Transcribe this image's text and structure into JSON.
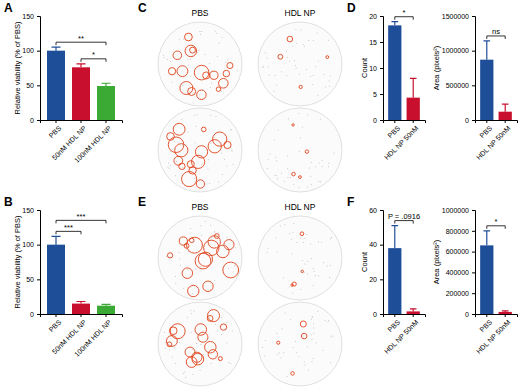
{
  "chart_data": [
    {
      "type": "bar",
      "panel_label": "A",
      "categories": [
        "PBS",
        "50nM HDL NP",
        "100nM HDL NP"
      ],
      "values": [
        100,
        76,
        49
      ],
      "errors": [
        5,
        5,
        4
      ],
      "colors": [
        "#1f4e99",
        "#c8102e",
        "#3aaa35"
      ],
      "ylim": [
        0,
        150
      ],
      "yticks": [
        0,
        50,
        100,
        150
      ],
      "y_label": "Relative viability (% of PBS)",
      "annotations": [
        {
          "pair": [
            "50nM HDL NP",
            "100nM HDL NP"
          ],
          "label": "*"
        },
        {
          "pair": [
            "PBS",
            "100nM HDL NP"
          ],
          "label": "**"
        }
      ]
    },
    {
      "type": "bar",
      "panel_label": "B",
      "categories": [
        "PBS",
        "50nM HDL NP",
        "100nM HDL NP"
      ],
      "values": [
        100,
        15,
        12
      ],
      "errors": [
        12,
        3,
        2
      ],
      "colors": [
        "#1f4e99",
        "#c8102e",
        "#3aaa35"
      ],
      "ylim": [
        0,
        150
      ],
      "yticks": [
        0,
        50,
        100,
        150
      ],
      "y_label": "Relative viability (% of PBS)",
      "annotations": [
        {
          "pair": [
            "PBS",
            "50nM HDL NP"
          ],
          "label": "***"
        },
        {
          "pair": [
            "PBS",
            "100nM HDL NP"
          ],
          "label": "***"
        }
      ]
    },
    {
      "type": "bar",
      "panel_label": "D",
      "categories": [
        "PBS",
        "HDL NP 50nM"
      ],
      "values": [
        18.2,
        4.3
      ],
      "errors": [
        0.7,
        3.7
      ],
      "colors": [
        "#1f4e99",
        "#c8102e"
      ],
      "ylim": [
        0,
        20
      ],
      "yticks": [
        0,
        5,
        10,
        15,
        20
      ],
      "y_label": "Count",
      "annotations": [
        {
          "pair": [
            "PBS",
            "HDL NP 50nM"
          ],
          "label": "*"
        }
      ]
    },
    {
      "type": "bar",
      "categories": [
        "PBS",
        "HDL NP 50nM"
      ],
      "values": [
        870000,
        120000
      ],
      "errors": [
        270000,
        110000
      ],
      "colors": [
        "#1f4e99",
        "#c8102e"
      ],
      "ylim": [
        0,
        1500000
      ],
      "yticks": [
        0,
        500000,
        1000000,
        1500000
      ],
      "y_label": "Area (pixels²)",
      "annotations": [
        {
          "pair": [
            "PBS",
            "HDL NP 50nM"
          ],
          "label": "ns"
        }
      ]
    },
    {
      "type": "bar",
      "panel_label": "F",
      "categories": [
        "PBS",
        "HDL NP 50nM"
      ],
      "values": [
        38,
        1.5
      ],
      "errors": [
        13,
        1.5
      ],
      "colors": [
        "#1f4e99",
        "#c8102e"
      ],
      "ylim": [
        0,
        60
      ],
      "yticks": [
        0,
        20,
        40,
        60
      ],
      "y_label": "Count",
      "annotations": [
        {
          "pair": [
            "PBS",
            "HDL NP 50nM"
          ],
          "label": "P = .0916"
        }
      ]
    },
    {
      "type": "bar",
      "categories": [
        "PBS",
        "HDL NP 50nM"
      ],
      "values": [
        660000,
        20000
      ],
      "errors": [
        140000,
        10000
      ],
      "colors": [
        "#1f4e99",
        "#c8102e"
      ],
      "ylim": [
        0,
        1000000
      ],
      "yticks": [
        0,
        200000,
        400000,
        600000,
        800000,
        1000000
      ],
      "y_label": "Area (pixels²)",
      "annotations": [
        {
          "pair": [
            "PBS",
            "HDL NP 50nM"
          ],
          "label": "*"
        }
      ]
    }
  ],
  "images": [
    {
      "panel_label": "C",
      "columns": [
        "PBS",
        "HDL NP"
      ]
    },
    {
      "panel_label": "E",
      "columns": [
        "PBS",
        "HDL NP"
      ]
    }
  ]
}
